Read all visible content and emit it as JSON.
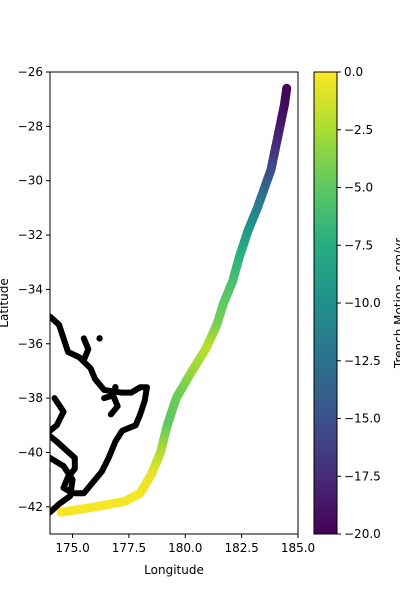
{
  "chart_data": {
    "type": "scatter",
    "title": "",
    "xlabel": "Longitude",
    "ylabel": "Latitude",
    "xlim": [
      174.0,
      185.0
    ],
    "ylim": [
      -43.0,
      -26.0
    ],
    "xticks": [
      175.0,
      177.5,
      180.0,
      182.5,
      185.0
    ],
    "xtick_labels": [
      "175.0",
      "177.5",
      "180.0",
      "182.5",
      "185.0"
    ],
    "yticks": [
      -42,
      -40,
      -38,
      -36,
      -34,
      -32,
      -30,
      -28,
      -26
    ],
    "ytick_labels": [
      "−42",
      "−40",
      "−38",
      "−36",
      "−34",
      "−32",
      "−30",
      "−28",
      "−26"
    ],
    "grid": false,
    "colormap": "viridis",
    "colorbar": {
      "label": "Trench Motion - cm/yr",
      "range": [
        -20.0,
        0.0
      ],
      "ticks": [
        0.0,
        -2.5,
        -5.0,
        -7.5,
        -10.0,
        -12.5,
        -15.0,
        -17.5,
        -20.0
      ],
      "tick_labels": [
        "0.0",
        "−2.5",
        "−5.0",
        "−7.5",
        "−10.0",
        "−12.5",
        "−15.0",
        "−17.5",
        "−20.0"
      ],
      "location": "right"
    },
    "series": [
      {
        "kind": "trench",
        "color_by": "trench motion",
        "points": [
          {
            "x": 184.5,
            "y": -26.6,
            "v": -20.0
          },
          {
            "x": 184.4,
            "y": -27.2,
            "v": -19.5
          },
          {
            "x": 184.2,
            "y": -28.0,
            "v": -18.7
          },
          {
            "x": 184.0,
            "y": -28.8,
            "v": -17.5
          },
          {
            "x": 183.8,
            "y": -29.6,
            "v": -15.5
          },
          {
            "x": 183.5,
            "y": -30.3,
            "v": -13.5
          },
          {
            "x": 183.2,
            "y": -31.0,
            "v": -11.5
          },
          {
            "x": 182.8,
            "y": -31.8,
            "v": -9.5
          },
          {
            "x": 182.4,
            "y": -32.8,
            "v": -7.3
          },
          {
            "x": 182.1,
            "y": -33.7,
            "v": -6.0
          },
          {
            "x": 181.7,
            "y": -34.5,
            "v": -5.0
          },
          {
            "x": 181.4,
            "y": -35.3,
            "v": -4.3
          },
          {
            "x": 180.9,
            "y": -36.2,
            "v": -2.0
          },
          {
            "x": 180.3,
            "y": -37.0,
            "v": -3.0
          },
          {
            "x": 179.6,
            "y": -38.0,
            "v": -4.5
          },
          {
            "x": 179.2,
            "y": -39.0,
            "v": -5.0
          },
          {
            "x": 178.9,
            "y": -40.0,
            "v": -2.5
          },
          {
            "x": 178.5,
            "y": -40.8,
            "v": -0.8
          },
          {
            "x": 178.0,
            "y": -41.5,
            "v": -0.3
          },
          {
            "x": 177.3,
            "y": -41.8,
            "v": -0.3
          },
          {
            "x": 176.0,
            "y": -42.0,
            "v": -0.2
          },
          {
            "x": 174.5,
            "y": -42.2,
            "v": -0.2
          }
        ]
      },
      {
        "kind": "coastline",
        "color": "#000000",
        "segments": [
          [
            [
              174.0,
              -35.0
            ],
            [
              174.4,
              -35.3
            ],
            [
              174.6,
              -35.8
            ],
            [
              174.8,
              -36.3
            ],
            [
              175.3,
              -36.5
            ],
            [
              175.8,
              -36.9
            ],
            [
              176.0,
              -37.3
            ],
            [
              176.4,
              -37.7
            ],
            [
              177.2,
              -37.8
            ],
            [
              177.6,
              -37.8
            ],
            [
              178.0,
              -37.6
            ],
            [
              178.3,
              -37.6
            ],
            [
              178.2,
              -38.1
            ],
            [
              178.0,
              -38.6
            ],
            [
              177.8,
              -39.0
            ],
            [
              177.2,
              -39.2
            ],
            [
              176.9,
              -39.6
            ],
            [
              176.6,
              -40.2
            ],
            [
              176.3,
              -40.7
            ],
            [
              176.0,
              -41.0
            ],
            [
              175.5,
              -41.5
            ],
            [
              175.0,
              -41.5
            ],
            [
              174.6,
              -41.3
            ],
            [
              174.8,
              -40.9
            ],
            [
              175.1,
              -40.6
            ],
            [
              175.1,
              -40.2
            ],
            [
              174.7,
              -39.9
            ],
            [
              174.3,
              -39.6
            ],
            [
              174.0,
              -39.4
            ]
          ],
          [
            [
              174.0,
              -40.2
            ],
            [
              174.6,
              -40.5
            ],
            [
              175.0,
              -41.0
            ],
            [
              174.9,
              -41.6
            ],
            [
              174.4,
              -41.9
            ],
            [
              174.0,
              -42.2
            ]
          ],
          [
            [
              175.5,
              -35.8
            ],
            [
              175.7,
              -36.2
            ],
            [
              175.5,
              -36.6
            ]
          ],
          [
            [
              176.4,
              -38.0
            ],
            [
              176.8,
              -37.9
            ],
            [
              177.0,
              -38.3
            ],
            [
              176.7,
              -38.6
            ]
          ],
          [
            [
              174.2,
              -38.0
            ],
            [
              174.6,
              -38.5
            ],
            [
              174.3,
              -39.0
            ],
            [
              174.0,
              -39.2
            ]
          ]
        ],
        "points": [
          [
            176.2,
            -35.8
          ],
          [
            176.9,
            -37.6
          ]
        ]
      }
    ]
  }
}
